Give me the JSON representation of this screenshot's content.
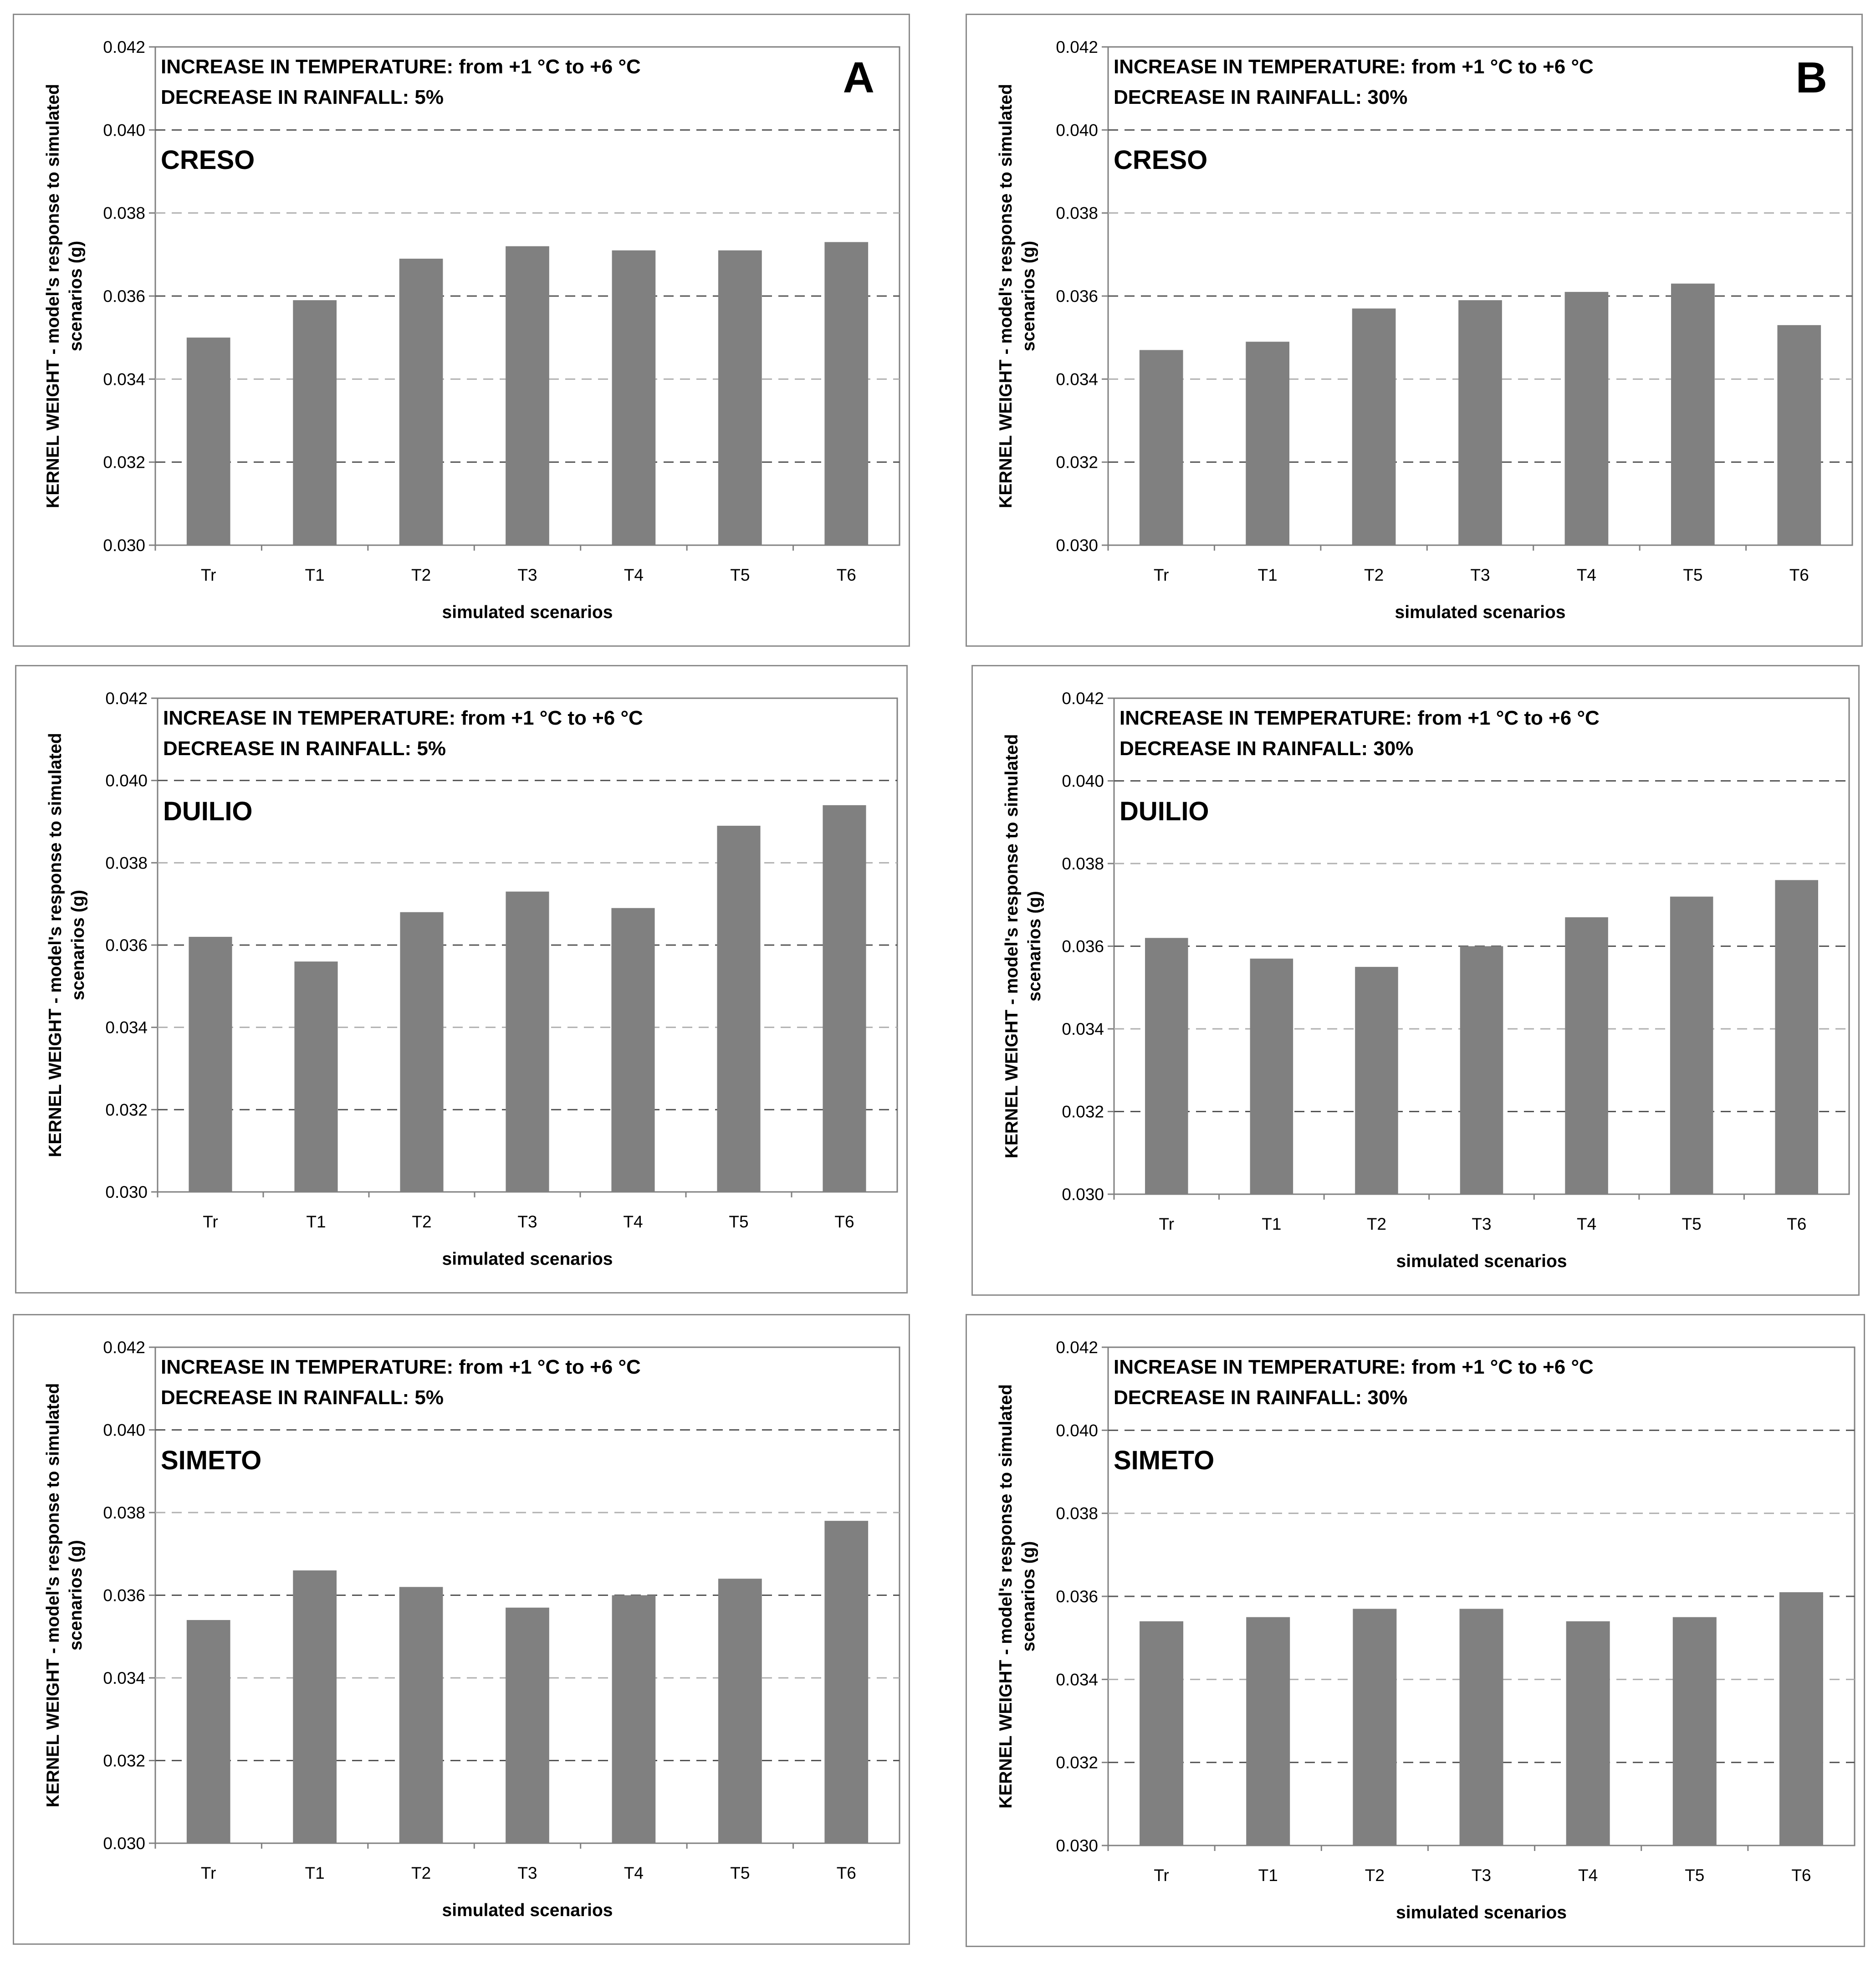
{
  "colors": {
    "bar": "#808080",
    "grid_dark": "#555555",
    "grid_light": "#b0b0b0",
    "axis": "#808080"
  },
  "common": {
    "ylabel_line1": "KERNEL WEIGHT - model's response to simulated",
    "ylabel_line2": "scenarios (g)",
    "xlabel": "simulated scenarios",
    "temperature_note": "INCREASE IN TEMPERATURE: from +1 °C to +6 °C",
    "yticks": [
      "0.030",
      "0.032",
      "0.034",
      "0.036",
      "0.038",
      "0.040",
      "0.042"
    ]
  },
  "chart_data": [
    {
      "type": "bar",
      "panel_letter": "A",
      "cultivar": "CRESO",
      "rainfall_note": "DECREASE IN RAINFALL: 5%",
      "categories": [
        "Tr",
        "T1",
        "T2",
        "T3",
        "T4",
        "T5",
        "T6"
      ],
      "values": [
        0.035,
        0.0359,
        0.0369,
        0.0372,
        0.0371,
        0.0371,
        0.0373
      ],
      "xlabel": "simulated scenarios",
      "ylabel": "KERNEL WEIGHT - model's response to simulated scenarios (g)",
      "ylim": [
        0.03,
        0.042
      ]
    },
    {
      "type": "bar",
      "panel_letter": "B",
      "cultivar": "CRESO",
      "rainfall_note": "DECREASE IN RAINFALL: 30%",
      "categories": [
        "Tr",
        "T1",
        "T2",
        "T3",
        "T4",
        "T5",
        "T6"
      ],
      "values": [
        0.0347,
        0.0349,
        0.0357,
        0.0359,
        0.0361,
        0.0363,
        0.0353
      ],
      "xlabel": "simulated scenarios",
      "ylabel": "KERNEL WEIGHT - model's response to simulated scenarios (g)",
      "ylim": [
        0.03,
        0.042
      ]
    },
    {
      "type": "bar",
      "panel_letter": "",
      "cultivar": "DUILIO",
      "rainfall_note": "DECREASE IN RAINFALL: 5%",
      "categories": [
        "Tr",
        "T1",
        "T2",
        "T3",
        "T4",
        "T5",
        "T6"
      ],
      "values": [
        0.0362,
        0.0356,
        0.0368,
        0.0373,
        0.0369,
        0.0389,
        0.0394
      ],
      "xlabel": "simulated scenarios",
      "ylabel": "KERNEL WEIGHT - model's response to simulated scenarios (g)",
      "ylim": [
        0.03,
        0.042
      ]
    },
    {
      "type": "bar",
      "panel_letter": "",
      "cultivar": "DUILIO",
      "rainfall_note": "DECREASE IN RAINFALL: 30%",
      "categories": [
        "Tr",
        "T1",
        "T2",
        "T3",
        "T4",
        "T5",
        "T6"
      ],
      "values": [
        0.0362,
        0.0357,
        0.0355,
        0.036,
        0.0367,
        0.0372,
        0.0376
      ],
      "xlabel": "simulated scenarios",
      "ylabel": "KERNEL WEIGHT - model's response to simulated scenarios (g)",
      "ylim": [
        0.03,
        0.042
      ]
    },
    {
      "type": "bar",
      "panel_letter": "",
      "cultivar": "SIMETO",
      "rainfall_note": "DECREASE IN RAINFALL: 5%",
      "categories": [
        "Tr",
        "T1",
        "T2",
        "T3",
        "T4",
        "T5",
        "T6"
      ],
      "values": [
        0.0354,
        0.0366,
        0.0362,
        0.0357,
        0.036,
        0.0364,
        0.0378
      ],
      "xlabel": "simulated scenarios",
      "ylabel": "KERNEL WEIGHT - model's response to simulated scenarios (g)",
      "ylim": [
        0.03,
        0.042
      ]
    },
    {
      "type": "bar",
      "panel_letter": "",
      "cultivar": "SIMETO",
      "rainfall_note": "DECREASE IN RAINFALL: 30%",
      "categories": [
        "Tr",
        "T1",
        "T2",
        "T3",
        "T4",
        "T5",
        "T6"
      ],
      "values": [
        0.0354,
        0.0355,
        0.0357,
        0.0357,
        0.0354,
        0.0355,
        0.0361
      ],
      "xlabel": "simulated scenarios",
      "ylabel": "KERNEL WEIGHT - model's response to simulated scenarios (g)",
      "ylim": [
        0.03,
        0.042
      ]
    }
  ]
}
